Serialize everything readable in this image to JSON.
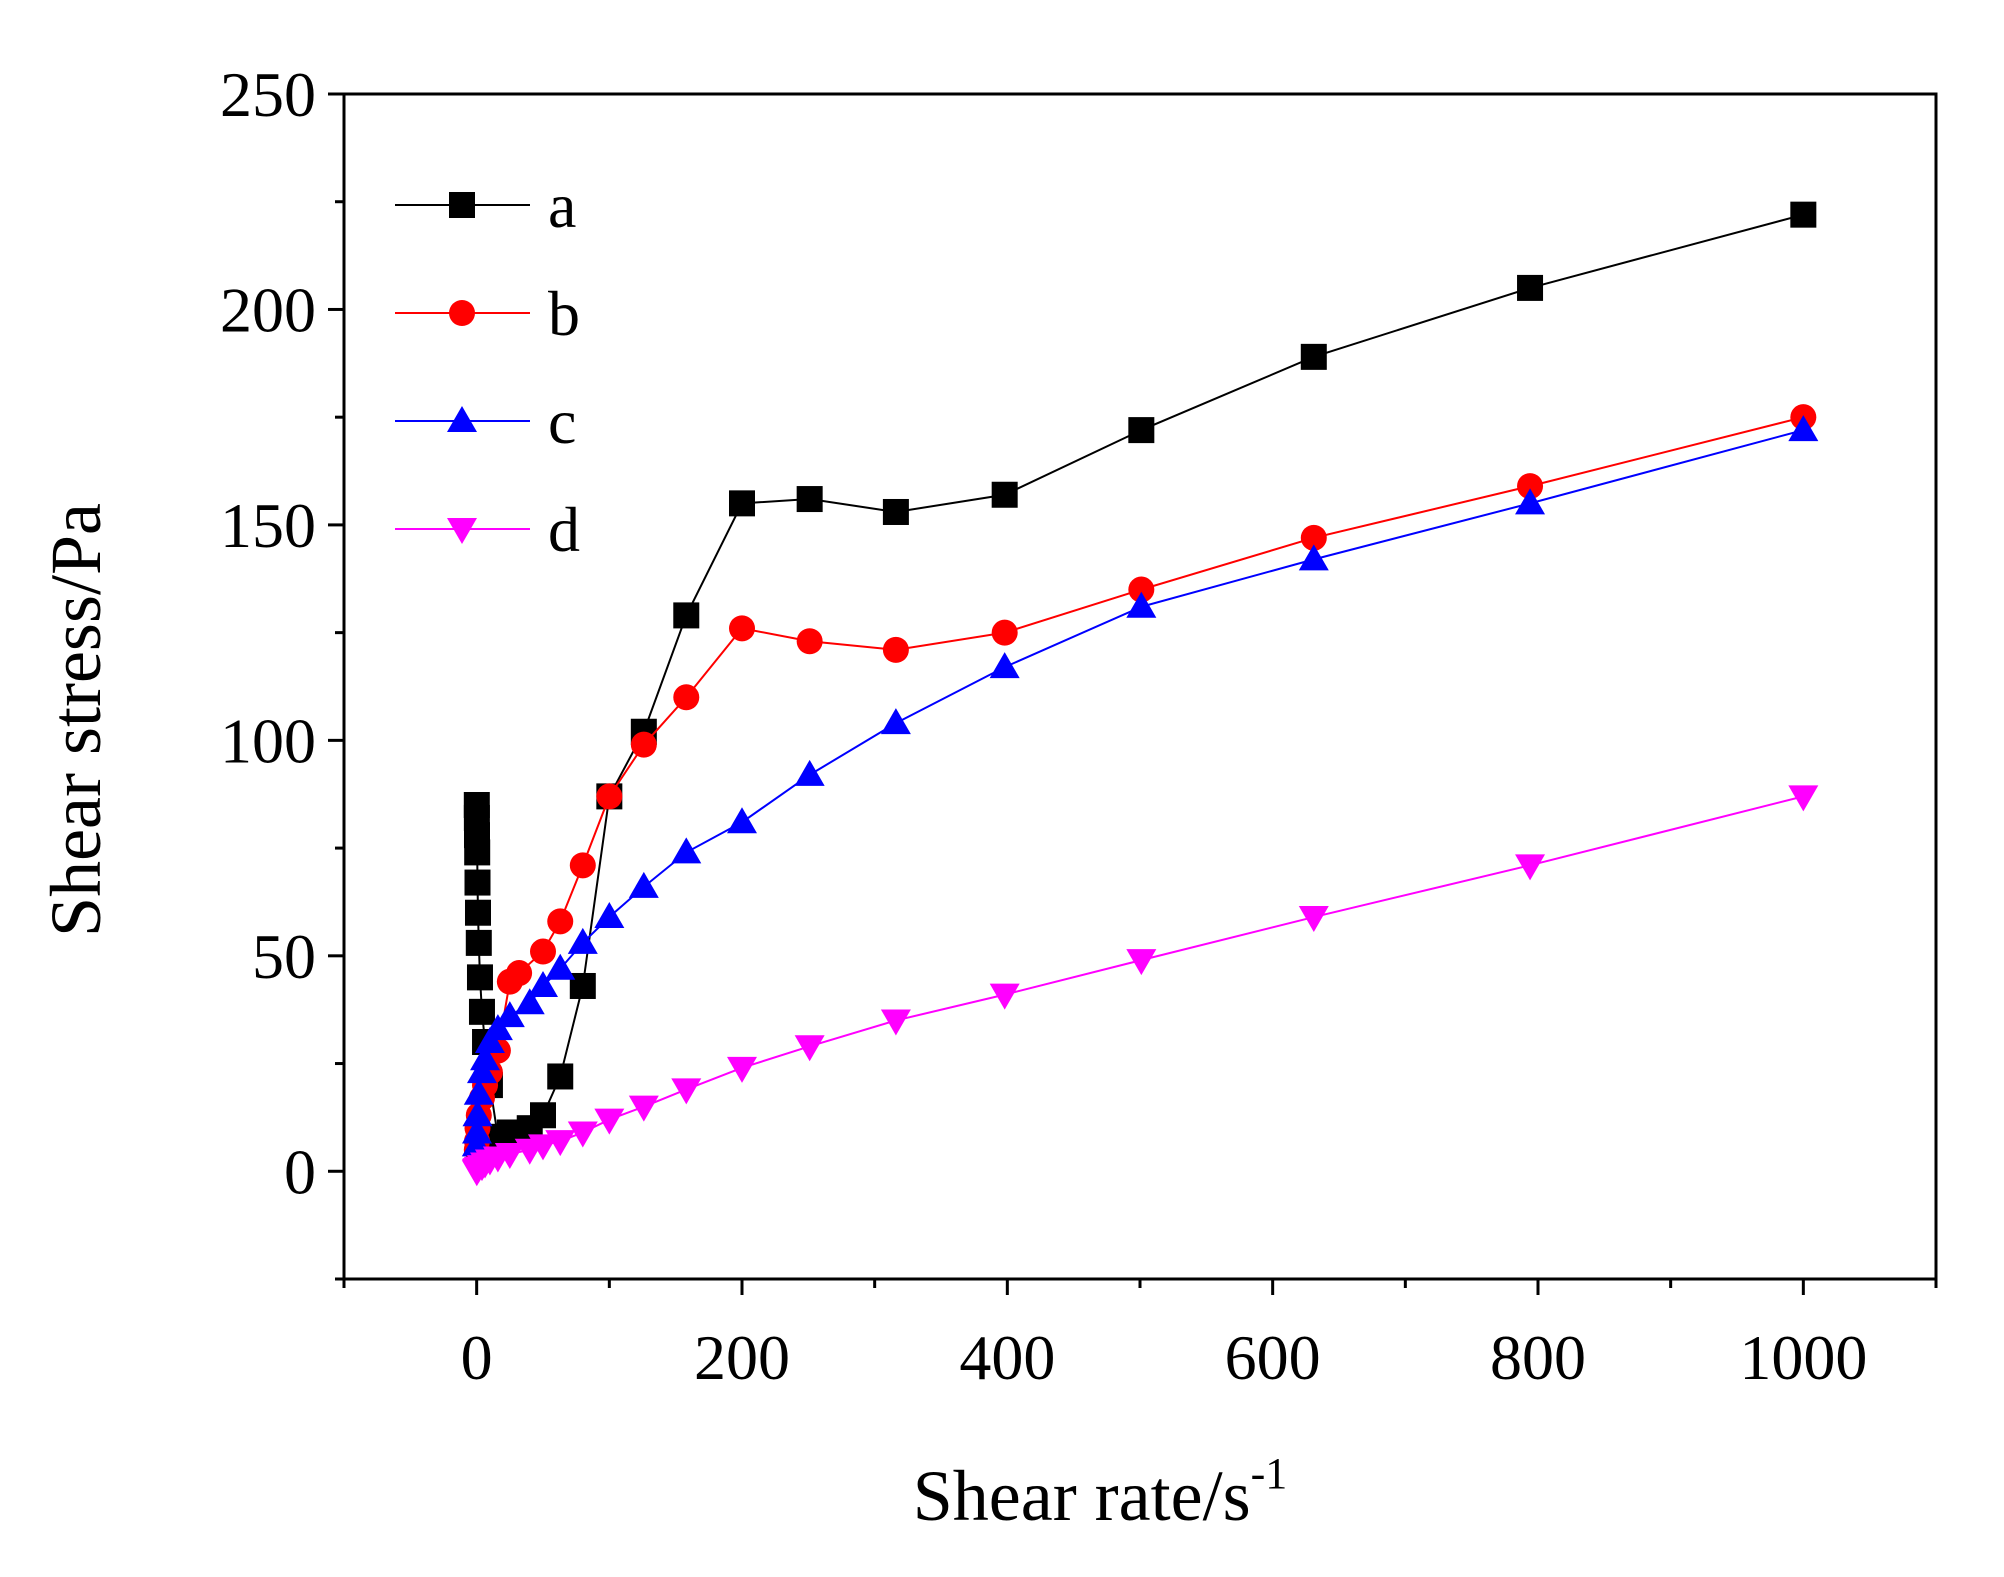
{
  "chart_data": {
    "type": "line",
    "title": "",
    "xlabel": "Shear rate/s",
    "xlabel_sup": "-1",
    "ylabel": "Shear stress/Pa",
    "xlim": [
      -100,
      1100
    ],
    "ylim": [
      -25,
      250
    ],
    "xticks": [
      0,
      200,
      400,
      600,
      800,
      1000
    ],
    "xtick_labels": [
      "0",
      "200",
      "400",
      "600",
      "800",
      "1000"
    ],
    "yticks": [
      0,
      50,
      100,
      150,
      200,
      250
    ],
    "ytick_labels": [
      "0",
      "50",
      "100",
      "150",
      "200",
      "250"
    ],
    "grid": false,
    "legend_position": "top-left",
    "series": [
      {
        "name": "a",
        "color": "#000000",
        "marker": "square",
        "x": [
          0.1,
          0.16,
          0.25,
          0.4,
          0.63,
          1,
          1.6,
          2.5,
          4,
          6.3,
          10,
          16,
          25,
          40,
          50,
          63,
          80,
          100,
          126,
          158,
          200,
          251,
          316,
          398,
          501,
          631,
          794,
          1000
        ],
        "y": [
          85,
          82,
          78,
          74,
          67,
          60,
          53,
          45,
          37,
          30,
          20,
          8,
          9,
          10,
          13,
          22,
          43,
          87,
          102,
          129,
          155,
          156,
          153,
          157,
          172,
          189,
          205,
          222
        ]
      },
      {
        "name": "b",
        "color": "#ff0000",
        "marker": "circle",
        "x": [
          0.1,
          0.25,
          0.63,
          1.6,
          4,
          6.3,
          10,
          16,
          25,
          32,
          50,
          63,
          80,
          100,
          126,
          158,
          200,
          251,
          316,
          398,
          501,
          631,
          794,
          1000
        ],
        "y": [
          5,
          7,
          10,
          13,
          17,
          20,
          23,
          28,
          44,
          46,
          51,
          58,
          71,
          87,
          99,
          110,
          126,
          123,
          121,
          125,
          135,
          147,
          159,
          175
        ]
      },
      {
        "name": "c",
        "color": "#0000ff",
        "marker": "triangle-up",
        "x": [
          0.1,
          0.25,
          0.63,
          1.6,
          4,
          6.3,
          10,
          16,
          25,
          40,
          50,
          63,
          80,
          100,
          126,
          158,
          200,
          251,
          316,
          398,
          501,
          631,
          794,
          1000
        ],
        "y": [
          6,
          9,
          13,
          18,
          23,
          26,
          30,
          33,
          36,
          39,
          43,
          47,
          53,
          59,
          66,
          74,
          81,
          92,
          104,
          117,
          131,
          142,
          155,
          172
        ]
      },
      {
        "name": "d",
        "color": "#ff00ff",
        "marker": "triangle-down",
        "x": [
          0.1,
          0.25,
          0.63,
          1.6,
          4,
          6.3,
          10,
          16,
          25,
          40,
          50,
          63,
          80,
          100,
          126,
          158,
          200,
          251,
          316,
          398,
          501,
          631,
          794,
          1000
        ],
        "y": [
          0,
          0.3,
          0.5,
          0.8,
          1.2,
          1.8,
          2.5,
          3.2,
          4,
          5,
          6,
          7,
          9,
          12,
          15,
          19,
          24,
          29,
          35,
          41,
          49,
          59,
          71,
          87
        ]
      }
    ]
  }
}
